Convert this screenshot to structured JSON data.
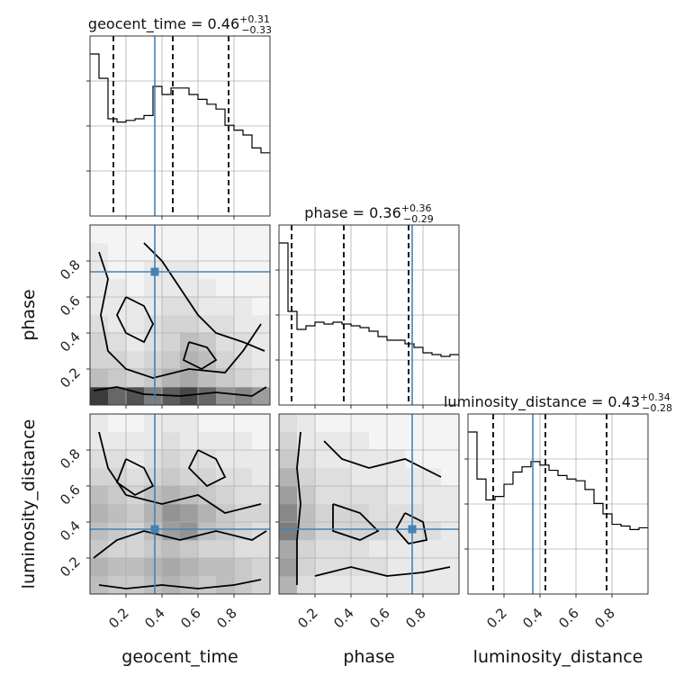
{
  "chart_data": {
    "type": "corner",
    "parameters": [
      "geocent_time",
      "phase",
      "luminosity_distance"
    ],
    "range": [
      0,
      1
    ],
    "ticks": [
      0.2,
      0.4,
      0.6,
      0.8
    ],
    "tick_labels": [
      "0.2",
      "0.4",
      "0.6",
      "0.8"
    ],
    "grid": true,
    "colors": {
      "truth": "#4682b4",
      "lines": "#000000",
      "grid": "#b0b0b0"
    },
    "truths": {
      "geocent_time": 0.36,
      "phase": 0.74,
      "luminosity_distance": 0.36
    },
    "marginals": [
      {
        "parameter": "geocent_time",
        "title": {
          "name": "geocent_time",
          "median": "0.46",
          "plus": "+0.31",
          "minus": "−0.33"
        },
        "quantiles": [
          0.13,
          0.46,
          0.77
        ],
        "bins": [
          0,
          0.05,
          0.1,
          0.15,
          0.2,
          0.25,
          0.3,
          0.35,
          0.4,
          0.45,
          0.5,
          0.55,
          0.6,
          0.65,
          0.7,
          0.75,
          0.8,
          0.85,
          0.9,
          0.95,
          1.0
        ],
        "counts": [
          1.0,
          0.85,
          0.6,
          0.58,
          0.59,
          0.6,
          0.62,
          0.8,
          0.75,
          0.79,
          0.79,
          0.75,
          0.72,
          0.69,
          0.66,
          0.56,
          0.53,
          0.5,
          0.42,
          0.39,
          0.31
        ]
      },
      {
        "parameter": "phase",
        "title": {
          "name": "phase",
          "median": "0.36",
          "plus": "+0.36",
          "minus": "−0.29"
        },
        "quantiles": [
          0.07,
          0.36,
          0.72
        ],
        "bins": [
          0,
          0.05,
          0.1,
          0.15,
          0.2,
          0.25,
          0.3,
          0.35,
          0.4,
          0.45,
          0.5,
          0.55,
          0.6,
          0.65,
          0.7,
          0.75,
          0.8,
          0.85,
          0.9,
          0.95,
          1.0
        ],
        "counts": [
          0.9,
          0.52,
          0.42,
          0.44,
          0.46,
          0.45,
          0.46,
          0.45,
          0.44,
          0.43,
          0.41,
          0.38,
          0.36,
          0.36,
          0.34,
          0.32,
          0.29,
          0.28,
          0.27,
          0.28,
          0.29
        ]
      },
      {
        "parameter": "luminosity_distance",
        "title": {
          "name": "luminosity_distance",
          "median": "0.43",
          "plus": "+0.34",
          "minus": "−0.28"
        },
        "quantiles": [
          0.14,
          0.43,
          0.77
        ],
        "bins": [
          0,
          0.05,
          0.1,
          0.15,
          0.2,
          0.25,
          0.3,
          0.35,
          0.4,
          0.45,
          0.5,
          0.55,
          0.6,
          0.65,
          0.7,
          0.75,
          0.8,
          0.85,
          0.9,
          0.95,
          1.0
        ],
        "counts": [
          0.93,
          0.66,
          0.54,
          0.56,
          0.63,
          0.7,
          0.73,
          0.76,
          0.74,
          0.71,
          0.68,
          0.66,
          0.65,
          0.6,
          0.52,
          0.46,
          0.4,
          0.39,
          0.37,
          0.38,
          0.38
        ]
      }
    ],
    "pairs": [
      {
        "x": "geocent_time",
        "y": "phase",
        "density_bins": 10,
        "density": [
          [
            0.9,
            0.7,
            0.8,
            0.6,
            0.75,
            0.85,
            0.7,
            0.5,
            0.55,
            0.45
          ],
          [
            0.3,
            0.25,
            0.2,
            0.25,
            0.35,
            0.4,
            0.3,
            0.25,
            0.2,
            0.15
          ],
          [
            0.2,
            0.2,
            0.15,
            0.2,
            0.25,
            0.35,
            0.3,
            0.2,
            0.15,
            0.1
          ],
          [
            0.2,
            0.15,
            0.1,
            0.15,
            0.2,
            0.3,
            0.25,
            0.15,
            0.15,
            0.1
          ],
          [
            0.15,
            0.1,
            0.1,
            0.15,
            0.2,
            0.2,
            0.15,
            0.15,
            0.1,
            0.1
          ],
          [
            0.1,
            0.1,
            0.1,
            0.1,
            0.15,
            0.15,
            0.1,
            0.1,
            0.1,
            0.05
          ],
          [
            0.1,
            0.1,
            0.05,
            0.1,
            0.1,
            0.1,
            0.1,
            0.05,
            0.05,
            0.05
          ],
          [
            0.1,
            0.05,
            0.05,
            0.1,
            0.1,
            0.1,
            0.05,
            0.05,
            0.05,
            0.05
          ],
          [
            0.1,
            0.05,
            0.05,
            0.05,
            0.05,
            0.05,
            0.05,
            0.05,
            0.05,
            0.05
          ],
          [
            0.05,
            0.05,
            0.05,
            0.05,
            0.05,
            0.05,
            0.05,
            0.05,
            0.05,
            0.05
          ]
        ],
        "contours": [
          [
            [
              0.02,
              0.08
            ],
            [
              0.15,
              0.1
            ],
            [
              0.3,
              0.06
            ],
            [
              0.5,
              0.05
            ],
            [
              0.7,
              0.07
            ],
            [
              0.9,
              0.05
            ],
            [
              0.98,
              0.1
            ]
          ],
          [
            [
              0.05,
              0.85
            ],
            [
              0.1,
              0.7
            ],
            [
              0.06,
              0.5
            ],
            [
              0.1,
              0.3
            ],
            [
              0.2,
              0.2
            ],
            [
              0.35,
              0.15
            ],
            [
              0.55,
              0.2
            ],
            [
              0.75,
              0.18
            ],
            [
              0.85,
              0.3
            ],
            [
              0.95,
              0.45
            ]
          ],
          [
            [
              0.3,
              0.9
            ],
            [
              0.4,
              0.8
            ],
            [
              0.5,
              0.65
            ],
            [
              0.6,
              0.5
            ],
            [
              0.7,
              0.4
            ],
            [
              0.85,
              0.35
            ],
            [
              0.97,
              0.3
            ]
          ],
          [
            [
              0.2,
              0.6
            ],
            [
              0.3,
              0.55
            ],
            [
              0.35,
              0.45
            ],
            [
              0.3,
              0.35
            ],
            [
              0.2,
              0.4
            ],
            [
              0.15,
              0.5
            ],
            [
              0.2,
              0.6
            ]
          ],
          [
            [
              0.55,
              0.35
            ],
            [
              0.65,
              0.32
            ],
            [
              0.7,
              0.25
            ],
            [
              0.62,
              0.2
            ],
            [
              0.52,
              0.25
            ],
            [
              0.55,
              0.35
            ]
          ]
        ]
      },
      {
        "x": "geocent_time",
        "y": "luminosity_distance",
        "density_bins": 10,
        "density": [
          [
            0.3,
            0.25,
            0.25,
            0.3,
            0.35,
            0.3,
            0.25,
            0.3,
            0.25,
            0.2
          ],
          [
            0.35,
            0.3,
            0.3,
            0.35,
            0.4,
            0.35,
            0.3,
            0.3,
            0.25,
            0.2
          ],
          [
            0.25,
            0.2,
            0.2,
            0.25,
            0.3,
            0.25,
            0.2,
            0.2,
            0.15,
            0.15
          ],
          [
            0.3,
            0.25,
            0.2,
            0.3,
            0.45,
            0.5,
            0.3,
            0.25,
            0.2,
            0.15
          ],
          [
            0.35,
            0.3,
            0.25,
            0.35,
            0.5,
            0.45,
            0.35,
            0.25,
            0.2,
            0.2
          ],
          [
            0.3,
            0.25,
            0.2,
            0.3,
            0.35,
            0.3,
            0.25,
            0.2,
            0.15,
            0.15
          ],
          [
            0.2,
            0.2,
            0.15,
            0.2,
            0.25,
            0.2,
            0.2,
            0.15,
            0.15,
            0.1
          ],
          [
            0.15,
            0.15,
            0.1,
            0.15,
            0.2,
            0.15,
            0.15,
            0.1,
            0.1,
            0.1
          ],
          [
            0.1,
            0.1,
            0.1,
            0.1,
            0.15,
            0.1,
            0.1,
            0.1,
            0.1,
            0.05
          ],
          [
            0.1,
            0.05,
            0.05,
            0.1,
            0.1,
            0.1,
            0.05,
            0.05,
            0.05,
            0.05
          ]
        ],
        "contours": [
          [
            [
              0.05,
              0.05
            ],
            [
              0.2,
              0.03
            ],
            [
              0.4,
              0.05
            ],
            [
              0.6,
              0.03
            ],
            [
              0.8,
              0.05
            ],
            [
              0.95,
              0.08
            ]
          ],
          [
            [
              0.02,
              0.2
            ],
            [
              0.15,
              0.3
            ],
            [
              0.3,
              0.35
            ],
            [
              0.5,
              0.3
            ],
            [
              0.7,
              0.35
            ],
            [
              0.9,
              0.3
            ],
            [
              0.98,
              0.35
            ]
          ],
          [
            [
              0.05,
              0.9
            ],
            [
              0.1,
              0.7
            ],
            [
              0.2,
              0.55
            ],
            [
              0.4,
              0.5
            ],
            [
              0.6,
              0.55
            ],
            [
              0.75,
              0.45
            ],
            [
              0.95,
              0.5
            ]
          ],
          [
            [
              0.2,
              0.75
            ],
            [
              0.3,
              0.7
            ],
            [
              0.35,
              0.6
            ],
            [
              0.25,
              0.55
            ],
            [
              0.15,
              0.62
            ],
            [
              0.2,
              0.75
            ]
          ],
          [
            [
              0.6,
              0.8
            ],
            [
              0.7,
              0.75
            ],
            [
              0.75,
              0.65
            ],
            [
              0.65,
              0.6
            ],
            [
              0.55,
              0.7
            ],
            [
              0.6,
              0.8
            ]
          ]
        ]
      },
      {
        "x": "phase",
        "y": "luminosity_distance",
        "density_bins": 10,
        "density": [
          [
            0.35,
            0.15,
            0.1,
            0.1,
            0.1,
            0.1,
            0.1,
            0.1,
            0.1,
            0.1
          ],
          [
            0.45,
            0.2,
            0.15,
            0.15,
            0.15,
            0.15,
            0.1,
            0.1,
            0.1,
            0.1
          ],
          [
            0.4,
            0.2,
            0.15,
            0.15,
            0.15,
            0.1,
            0.1,
            0.1,
            0.1,
            0.1
          ],
          [
            0.6,
            0.3,
            0.2,
            0.2,
            0.2,
            0.2,
            0.15,
            0.15,
            0.15,
            0.1
          ],
          [
            0.55,
            0.3,
            0.2,
            0.2,
            0.2,
            0.15,
            0.15,
            0.15,
            0.1,
            0.1
          ],
          [
            0.45,
            0.25,
            0.15,
            0.15,
            0.15,
            0.15,
            0.1,
            0.1,
            0.1,
            0.1
          ],
          [
            0.35,
            0.2,
            0.15,
            0.15,
            0.1,
            0.1,
            0.1,
            0.1,
            0.1,
            0.05
          ],
          [
            0.25,
            0.15,
            0.1,
            0.1,
            0.1,
            0.1,
            0.1,
            0.05,
            0.05,
            0.05
          ],
          [
            0.2,
            0.1,
            0.1,
            0.1,
            0.1,
            0.05,
            0.05,
            0.05,
            0.05,
            0.05
          ],
          [
            0.15,
            0.1,
            0.05,
            0.05,
            0.05,
            0.05,
            0.05,
            0.05,
            0.05,
            0.05
          ]
        ],
        "contours": [
          [
            [
              0.1,
              0.05
            ],
            [
              0.1,
              0.3
            ],
            [
              0.12,
              0.5
            ],
            [
              0.1,
              0.7
            ],
            [
              0.12,
              0.9
            ]
          ],
          [
            [
              0.2,
              0.1
            ],
            [
              0.4,
              0.15
            ],
            [
              0.6,
              0.1
            ],
            [
              0.8,
              0.12
            ],
            [
              0.95,
              0.15
            ]
          ],
          [
            [
              0.25,
              0.85
            ],
            [
              0.35,
              0.75
            ],
            [
              0.5,
              0.7
            ],
            [
              0.7,
              0.75
            ],
            [
              0.9,
              0.65
            ]
          ],
          [
            [
              0.3,
              0.5
            ],
            [
              0.45,
              0.45
            ],
            [
              0.55,
              0.35
            ],
            [
              0.45,
              0.3
            ],
            [
              0.3,
              0.35
            ],
            [
              0.3,
              0.5
            ]
          ],
          [
            [
              0.7,
              0.45
            ],
            [
              0.8,
              0.4
            ],
            [
              0.82,
              0.3
            ],
            [
              0.72,
              0.28
            ],
            [
              0.65,
              0.36
            ],
            [
              0.7,
              0.45
            ]
          ]
        ]
      }
    ]
  }
}
